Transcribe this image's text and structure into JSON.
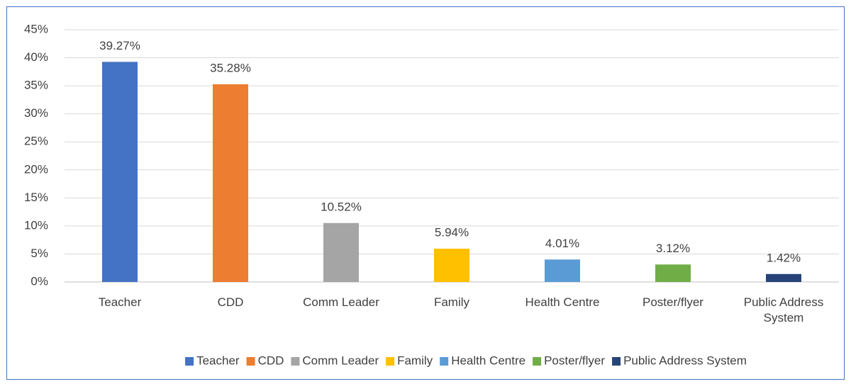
{
  "chart_data": {
    "type": "bar",
    "categories": [
      "Teacher",
      "CDD",
      "Comm Leader",
      "Family",
      "Health Centre",
      "Poster/flyer",
      "Public Address System"
    ],
    "values": [
      39.27,
      35.28,
      10.52,
      5.94,
      4.01,
      3.12,
      1.42
    ],
    "value_labels": [
      "39.27%",
      "35.28%",
      "10.52%",
      "5.94%",
      "4.01%",
      "3.12%",
      "1.42%"
    ],
    "colors": [
      "#4472c4",
      "#ed7d31",
      "#a5a5a5",
      "#ffc000",
      "#5b9bd5",
      "#70ad47",
      "#264478"
    ],
    "ylim": [
      0,
      45
    ],
    "yticks": [
      {
        "value": 0,
        "label": "0%"
      },
      {
        "value": 5,
        "label": "5%"
      },
      {
        "value": 10,
        "label": "10%"
      },
      {
        "value": 15,
        "label": "15%"
      },
      {
        "value": 20,
        "label": "20%"
      },
      {
        "value": 25,
        "label": "25%"
      },
      {
        "value": 30,
        "label": "30%"
      },
      {
        "value": 35,
        "label": "35%"
      },
      {
        "value": 40,
        "label": "40%"
      },
      {
        "value": 45,
        "label": "45%"
      }
    ],
    "grid": true,
    "legend": "bottom"
  }
}
